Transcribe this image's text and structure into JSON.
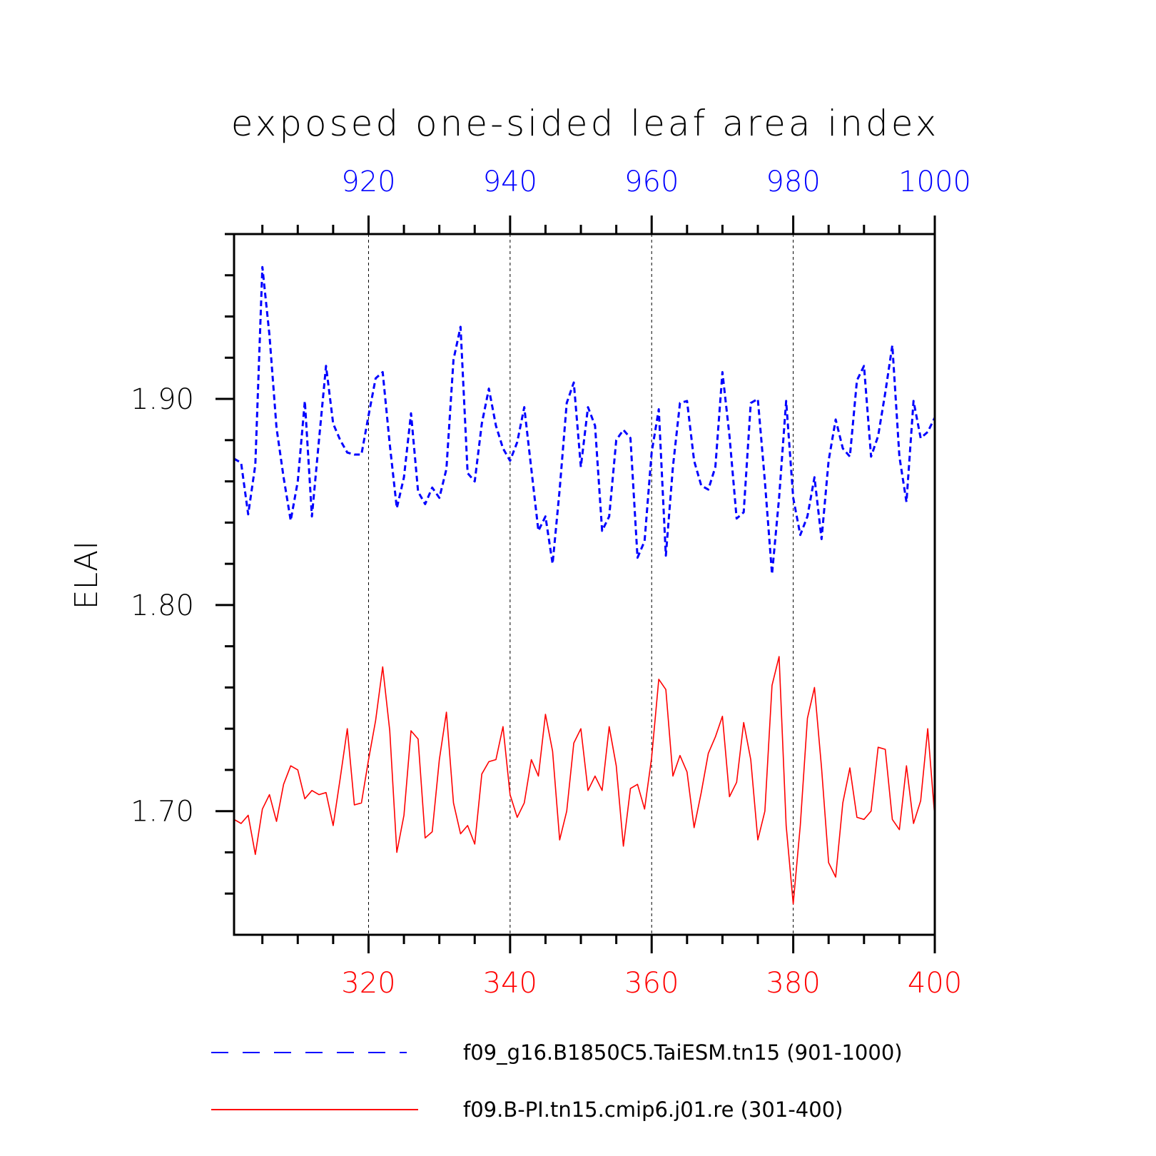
{
  "chart_data": {
    "type": "line",
    "title": "exposed one-sided leaf area index",
    "ylabel": "ELAI",
    "xlabel": "",
    "ylim": [
      1.64,
      1.98
    ],
    "yticks": [
      {
        "value": 1.7,
        "label": "1.70"
      },
      {
        "value": 1.8,
        "label": "1.80"
      },
      {
        "value": 1.9,
        "label": "1.90"
      }
    ],
    "x_top": {
      "range": [
        901,
        1000
      ],
      "ticks": [
        920,
        940,
        960,
        980,
        1000
      ],
      "labels": [
        "920",
        "940",
        "960",
        "980",
        "1000"
      ],
      "color": "#0000ff"
    },
    "x_bottom": {
      "range": [
        301,
        400
      ],
      "ticks": [
        320,
        340,
        360,
        380,
        400
      ],
      "labels": [
        "320",
        "340",
        "360",
        "380",
        "400"
      ],
      "color": "#ff0000"
    },
    "grid": "vertical dashed at major ticks",
    "legend_position": "bottom",
    "series": [
      {
        "name": "f09_g16.B1850C5.TaiESM.tn15 (901-1000)",
        "color": "#0000ff",
        "style": "dashed",
        "x_start": 901,
        "values": [
          1.871,
          1.869,
          1.844,
          1.868,
          1.964,
          1.931,
          1.886,
          1.862,
          1.841,
          1.86,
          1.899,
          1.843,
          1.88,
          1.916,
          1.888,
          1.88,
          1.874,
          1.873,
          1.873,
          1.892,
          1.91,
          1.913,
          1.878,
          1.847,
          1.862,
          1.893,
          1.855,
          1.849,
          1.857,
          1.852,
          1.866,
          1.919,
          1.935,
          1.864,
          1.86,
          1.888,
          1.905,
          1.887,
          1.876,
          1.87,
          1.879,
          1.896,
          1.866,
          1.836,
          1.843,
          1.82,
          1.856,
          1.898,
          1.908,
          1.867,
          1.896,
          1.887,
          1.836,
          1.843,
          1.88,
          1.885,
          1.881,
          1.823,
          1.831,
          1.874,
          1.895,
          1.824,
          1.867,
          1.898,
          1.899,
          1.87,
          1.858,
          1.856,
          1.867,
          1.913,
          1.882,
          1.842,
          1.845,
          1.898,
          1.9,
          1.86,
          1.815,
          1.852,
          1.899,
          1.852,
          1.834,
          1.843,
          1.862,
          1.832,
          1.87,
          1.89,
          1.876,
          1.872,
          1.909,
          1.916,
          1.872,
          1.882,
          1.903,
          1.926,
          1.872,
          1.85,
          1.899,
          1.881,
          1.884,
          1.891
        ]
      },
      {
        "name": "f09.B-PI.tn15.cmip6.j01.re (301-400)",
        "color": "#ff0000",
        "style": "solid",
        "x_start": 301,
        "values": [
          1.696,
          1.694,
          1.698,
          1.679,
          1.701,
          1.708,
          1.695,
          1.713,
          1.722,
          1.72,
          1.706,
          1.71,
          1.708,
          1.709,
          1.693,
          1.716,
          1.74,
          1.703,
          1.704,
          1.725,
          1.744,
          1.77,
          1.739,
          1.68,
          1.698,
          1.739,
          1.735,
          1.687,
          1.69,
          1.725,
          1.748,
          1.704,
          1.689,
          1.693,
          1.684,
          1.718,
          1.724,
          1.725,
          1.741,
          1.708,
          1.697,
          1.704,
          1.725,
          1.717,
          1.747,
          1.729,
          1.686,
          1.7,
          1.733,
          1.74,
          1.71,
          1.717,
          1.71,
          1.741,
          1.722,
          1.683,
          1.711,
          1.713,
          1.701,
          1.726,
          1.764,
          1.759,
          1.717,
          1.727,
          1.719,
          1.692,
          1.709,
          1.728,
          1.736,
          1.746,
          1.707,
          1.714,
          1.743,
          1.725,
          1.686,
          1.7,
          1.761,
          1.775,
          1.693,
          1.655,
          1.693,
          1.745,
          1.76,
          1.721,
          1.675,
          1.668,
          1.704,
          1.721,
          1.697,
          1.696,
          1.7,
          1.731,
          1.73,
          1.696,
          1.691,
          1.722,
          1.694,
          1.705,
          1.74,
          1.697
        ]
      }
    ]
  }
}
